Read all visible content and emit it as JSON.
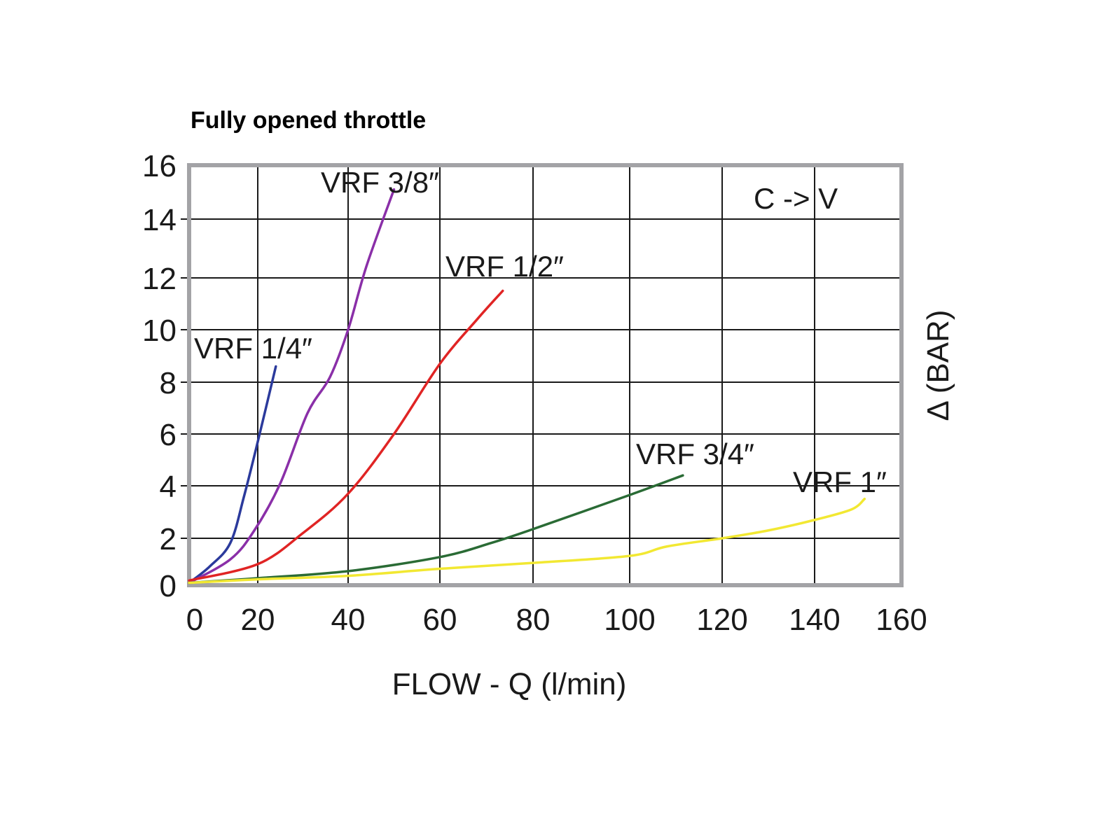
{
  "chart_data": {
    "type": "line",
    "title": "Fully opened throttle",
    "xlabel": "FLOW - Q (l/min)",
    "ylabel": "Δ (BAR)",
    "annotation": "C -> V",
    "xlim": [
      0,
      160
    ],
    "ylim": [
      0,
      16
    ],
    "xticks": [
      "0",
      "20",
      "40",
      "60",
      "80",
      "100",
      "120",
      "140",
      "160"
    ],
    "yticks": [
      "0",
      "2",
      "4",
      "6",
      "8",
      "10",
      "12",
      "14",
      "16"
    ],
    "grid": true,
    "legend": "inline labels at curve ends",
    "series": [
      {
        "name": "VRF 1/4″",
        "color": "#2b3a9c",
        "x": [
          0,
          6,
          12,
          16,
          20,
          24
        ],
        "y": [
          0.1,
          0.8,
          1.8,
          3.6,
          5.7,
          8.6
        ]
      },
      {
        "name": "VRF 3/8″",
        "color": "#8a2fa8",
        "x": [
          0,
          12,
          19,
          25,
          31,
          36,
          40,
          44,
          50
        ],
        "y": [
          0.1,
          1.1,
          2.3,
          4.1,
          6.8,
          8.2,
          10,
          12.4,
          15.1
        ]
      },
      {
        "name": "VRF 1/2″",
        "color": "#e02424",
        "x": [
          0,
          20,
          30,
          40,
          50,
          60,
          68,
          73.5
        ],
        "y": [
          0.2,
          0.9,
          2.2,
          3.7,
          6,
          8.7,
          10.4,
          11.5
        ]
      },
      {
        "name": "VRF 3/4″",
        "color": "#2a6b35",
        "x": [
          0,
          20,
          40,
          60,
          71,
          80,
          100,
          111.5
        ],
        "y": [
          0.1,
          0.3,
          0.6,
          1.2,
          1.8,
          2.35,
          3.65,
          4.4
        ]
      },
      {
        "name": "VRF 1″",
        "color": "#f2e832",
        "x": [
          0,
          20,
          40,
          60,
          80,
          100,
          108,
          120,
          130,
          140,
          148.5,
          151.5
        ],
        "y": [
          0.1,
          0.25,
          0.4,
          0.7,
          0.95,
          1.25,
          1.65,
          2,
          2.3,
          2.7,
          3.1,
          3.5
        ]
      }
    ]
  }
}
